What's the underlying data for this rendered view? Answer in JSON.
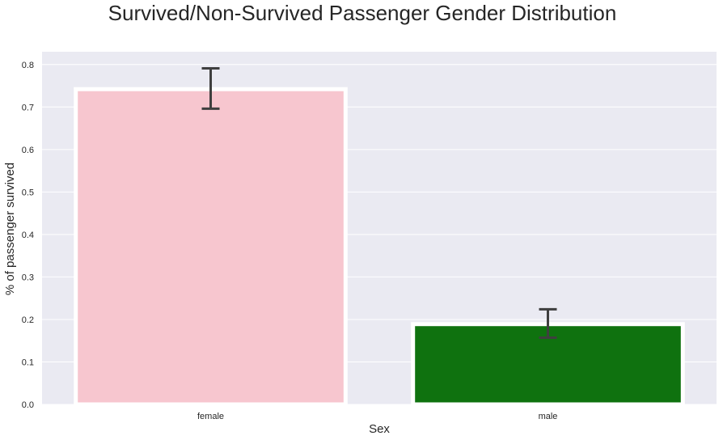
{
  "chart_data": {
    "type": "bar",
    "title": "Survived/Non-Survived Passenger Gender Distribution",
    "xlabel": "Sex",
    "ylabel": "% of passenger survived",
    "categories": [
      "female",
      "male"
    ],
    "values": [
      0.742,
      0.189
    ],
    "error_bars": [
      {
        "low": 0.696,
        "high": 0.791
      },
      {
        "low": 0.157,
        "high": 0.224
      }
    ],
    "ylim": [
      0,
      0.83
    ],
    "yticks": [
      0.0,
      0.1,
      0.2,
      0.3,
      0.4,
      0.5,
      0.6,
      0.7,
      0.8
    ],
    "ytick_labels": [
      "0.0",
      "0.1",
      "0.2",
      "0.3",
      "0.4",
      "0.5",
      "0.6",
      "0.7",
      "0.8"
    ],
    "grid": true,
    "legend": "none",
    "colors": {
      "female": "#f7c6cf",
      "male": "#0f720f",
      "background": "#eaeaf2",
      "grid": "#ffffff",
      "bar_edge": "#ffffff",
      "error_bar": "#3f3f3f"
    }
  }
}
